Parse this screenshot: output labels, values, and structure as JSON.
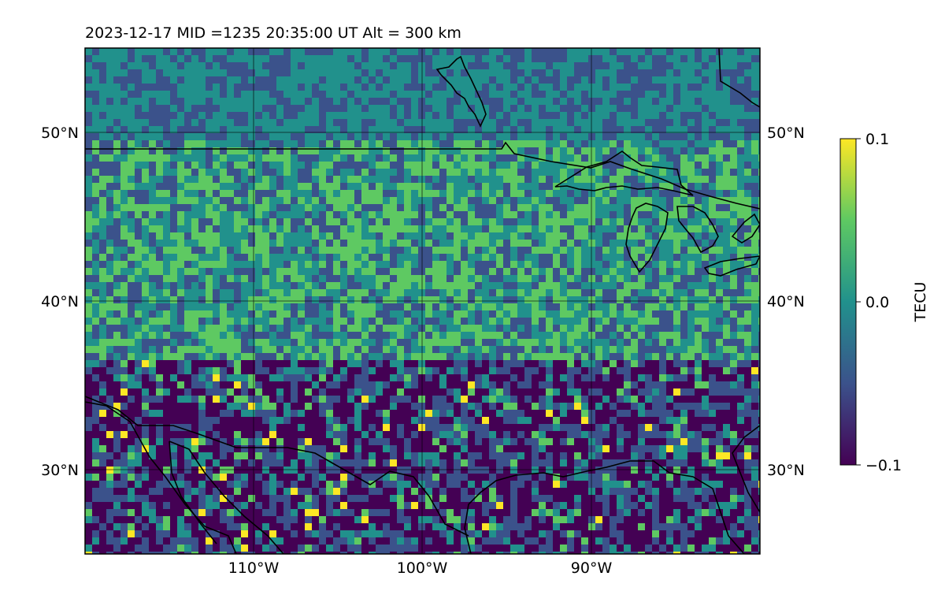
{
  "title": "2023-12-17  MID =1235    20:35:00  UT  Alt = 300 km",
  "map": {
    "lon_range": [
      -120,
      -80
    ],
    "lat_range": [
      25,
      55
    ],
    "lon_ticks": [
      {
        "value": -110,
        "label": "110°W"
      },
      {
        "value": -100,
        "label": "100°W"
      },
      {
        "value": -90,
        "label": "90°W"
      }
    ],
    "lat_ticks": [
      {
        "value": 50,
        "label": "50°N"
      },
      {
        "value": 40,
        "label": "40°N"
      },
      {
        "value": 30,
        "label": "30°N"
      }
    ],
    "colormap": "viridis",
    "grid": true
  },
  "colorbar": {
    "label": "TECU",
    "min": -0.1,
    "max": 0.1,
    "ticks": [
      {
        "value": 0.1,
        "label": "0.1"
      },
      {
        "value": 0.0,
        "label": "0.0"
      },
      {
        "value": -0.1,
        "label": "−0.1"
      }
    ],
    "colors": [
      "#440154",
      "#3b528b",
      "#21918c",
      "#5ec962",
      "#fde725"
    ]
  }
}
